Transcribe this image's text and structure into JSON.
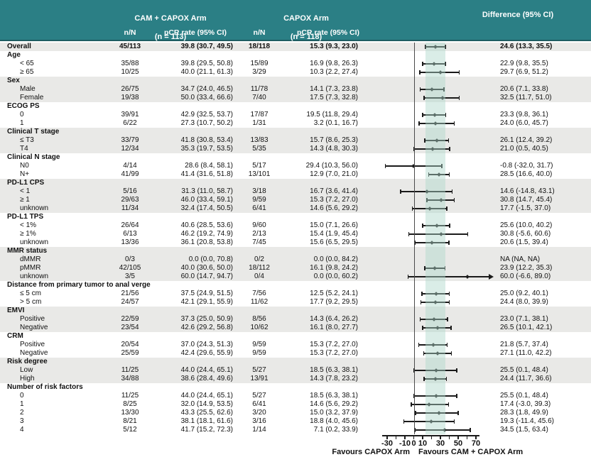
{
  "header": {
    "arm1_title": "CAM + CAPOX Arm",
    "arm1_sub": "(n = 113)",
    "arm2_title": "CAPOX Arm",
    "arm2_sub": "(n = 118)",
    "diff_title": "Difference (95% CI)",
    "col_nn_1": "n/N",
    "col_pcr_1": "pCR rate (95% CI)",
    "col_nn_2": "n/N",
    "col_pcr_2": "pCR rate (95% CI)"
  },
  "colors": {
    "header_teal": "#2b7f85",
    "row_shade": "#e9e9e7",
    "band_teal": "rgba(172,216,201,0.45)",
    "mark_black": "#1a1a1a"
  },
  "chart_data": {
    "type": "scatter",
    "subtype": "forest-plot",
    "xlabel_left": "Favours CAPOX Arm",
    "xlabel_right": "Favours CAM + CAPOX Arm",
    "axis": {
      "xlim_draw": [
        -42,
        90
      ],
      "axis_line": [
        -36,
        74
      ],
      "minor_ticks": [
        -30,
        -20,
        -10,
        0,
        10,
        20,
        30,
        40,
        50,
        60,
        70
      ],
      "labeled_ticks": [
        -30,
        -10,
        0,
        10,
        30,
        50,
        70
      ],
      "reference_line": 0
    },
    "shaded_band": [
      13.3,
      35.5
    ],
    "rows": [
      {
        "label": "Overall",
        "bold": true,
        "indent": 0,
        "cam_nN": "45/113",
        "cam_pcr": "39.8 (30.7, 49.5)",
        "capox_nN": "18/118",
        "capox_pcr": "15.3 (9.3, 23.0)",
        "diff": "24.6 (13.3, 35.5)",
        "est": 24.6,
        "lo": 13.3,
        "hi": 35.5
      },
      {
        "group": "Age"
      },
      {
        "label": "< 65",
        "cam_nN": "35/88",
        "cam_pcr": "39.8 (29.5, 50.8)",
        "capox_nN": "15/89",
        "capox_pcr": "16.9 (9.8, 26.3)",
        "diff": "22.9 (9.8, 35.5)",
        "est": 22.9,
        "lo": 9.8,
        "hi": 35.5
      },
      {
        "label": "≥ 65",
        "cam_nN": "10/25",
        "cam_pcr": "40.0 (21.1, 61.3)",
        "capox_nN": "3/29",
        "capox_pcr": "10.3 (2.2, 27.4)",
        "diff": "29.7 (6.9, 51.2)",
        "est": 29.7,
        "lo": 6.9,
        "hi": 51.2
      },
      {
        "group": "Sex"
      },
      {
        "label": "Male",
        "cam_nN": "26/75",
        "cam_pcr": "34.7 (24.0, 46.5)",
        "capox_nN": "11/78",
        "capox_pcr": "14.1 (7.3, 23.8)",
        "diff": "20.6 (7.1, 33.8)",
        "est": 20.6,
        "lo": 7.1,
        "hi": 33.8
      },
      {
        "label": "Female",
        "cam_nN": "19/38",
        "cam_pcr": "50.0 (33.4, 66.6)",
        "capox_nN": "7/40",
        "capox_pcr": "17.5 (7.3, 32.8)",
        "diff": "32.5 (11.7, 51.0)",
        "est": 32.5,
        "lo": 11.7,
        "hi": 51.0
      },
      {
        "group": "ECOG PS"
      },
      {
        "label": "0",
        "cam_nN": "39/91",
        "cam_pcr": "42.9 (32.5, 53.7)",
        "capox_nN": "17/87",
        "capox_pcr": "19.5 (11.8, 29.4)",
        "diff": "23.3 (9.8, 36.1)",
        "est": 23.3,
        "lo": 9.8,
        "hi": 36.1
      },
      {
        "label": "1",
        "cam_nN": "6/22",
        "cam_pcr": "27.3 (10.7, 50.2)",
        "capox_nN": "1/31",
        "capox_pcr": "3.2 (0.1, 16.7)",
        "diff": "24.0 (6.0, 45.7)",
        "est": 24.0,
        "lo": 6.0,
        "hi": 45.7
      },
      {
        "group": "Clinical T stage"
      },
      {
        "label": "≤ T3",
        "cam_nN": "33/79",
        "cam_pcr": "41.8 (30.8, 53.4)",
        "capox_nN": "13/83",
        "capox_pcr": "15.7 (8.6, 25.3)",
        "diff": "26.1 (12.4, 39.2)",
        "est": 26.1,
        "lo": 12.4,
        "hi": 39.2
      },
      {
        "label": "T4",
        "cam_nN": "12/34",
        "cam_pcr": "35.3 (19.7, 53.5)",
        "capox_nN": "5/35",
        "capox_pcr": "14.3 (4.8, 30.3)",
        "diff": "21.0 (0.5, 40.5)",
        "est": 21.0,
        "lo": 0.5,
        "hi": 40.5
      },
      {
        "group": "Clinical N stage"
      },
      {
        "label": "N0",
        "cam_nN": "4/14",
        "cam_pcr": "28.6 (8.4, 58.1)",
        "capox_nN": "5/17",
        "capox_pcr": "29.4 (10.3, 56.0)",
        "diff": "-0.8 (-32.0, 31.7)",
        "est": -0.8,
        "lo": -32.0,
        "hi": 31.7
      },
      {
        "label": "N+",
        "cam_nN": "41/99",
        "cam_pcr": "41.4 (31.6, 51.8)",
        "capox_nN": "13/101",
        "capox_pcr": "12.9 (7.0, 21.0)",
        "diff": "28.5 (16.6, 40.0)",
        "est": 28.5,
        "lo": 16.6,
        "hi": 40.0
      },
      {
        "group": "PD-L1 CPS"
      },
      {
        "label": "< 1",
        "cam_nN": "5/16",
        "cam_pcr": "31.3 (11.0, 58.7)",
        "capox_nN": "3/18",
        "capox_pcr": "16.7 (3.6, 41.4)",
        "diff": "14.6 (-14.8, 43.1)",
        "est": 14.6,
        "lo": -14.8,
        "hi": 43.1
      },
      {
        "label": "≥ 1",
        "cam_nN": "29/63",
        "cam_pcr": "46.0 (33.4, 59.1)",
        "capox_nN": "9/59",
        "capox_pcr": "15.3 (7.2, 27.0)",
        "diff": "30.8 (14.7, 45.4)",
        "est": 30.8,
        "lo": 14.7,
        "hi": 45.4
      },
      {
        "label": "unknown",
        "cam_nN": "11/34",
        "cam_pcr": "32.4 (17.4, 50.5)",
        "capox_nN": "6/41",
        "capox_pcr": "14.6 (5.6, 29.2)",
        "diff": "17.7 (-1.5, 37.0)",
        "est": 17.7,
        "lo": -1.5,
        "hi": 37.0
      },
      {
        "group": "PD-L1 TPS"
      },
      {
        "label": "< 1%",
        "cam_nN": "26/64",
        "cam_pcr": "40.6 (28.5, 53.6)",
        "capox_nN": "9/60",
        "capox_pcr": "15.0 (7.1, 26.6)",
        "diff": "25.6 (10.0, 40.2)",
        "est": 25.6,
        "lo": 10.0,
        "hi": 40.2
      },
      {
        "label": "≥ 1%",
        "cam_nN": "6/13",
        "cam_pcr": "46.2 (19.2, 74.9)",
        "capox_nN": "2/13",
        "capox_pcr": "15.4 (1.9, 45.4)",
        "diff": "30.8 (-5.6, 60.6)",
        "est": 30.8,
        "lo": -5.6,
        "hi": 60.6
      },
      {
        "label": "unknown",
        "cam_nN": "13/36",
        "cam_pcr": "36.1 (20.8, 53.8)",
        "capox_nN": "7/45",
        "capox_pcr": "15.6 (6.5, 29.5)",
        "diff": "20.6 (1.5, 39.4)",
        "est": 20.6,
        "lo": 1.5,
        "hi": 39.4
      },
      {
        "group": "MMR status"
      },
      {
        "label": "dMMR",
        "cam_nN": "0/3",
        "cam_pcr": "0.0 (0.0, 70.8)",
        "capox_nN": "0/2",
        "capox_pcr": "0.0 (0.0, 84.2)",
        "diff": "NA (NA, NA)",
        "est": null,
        "lo": null,
        "hi": null
      },
      {
        "label": "pMMR",
        "cam_nN": "42/105",
        "cam_pcr": "40.0 (30.6, 50.0)",
        "capox_nN": "18/112",
        "capox_pcr": "16.1 (9.8, 24.2)",
        "diff": "23.9 (12.2, 35.3)",
        "est": 23.9,
        "lo": 12.2,
        "hi": 35.3
      },
      {
        "label": "unknown",
        "cam_nN": "3/5",
        "cam_pcr": "60.0 (14.7, 94.7)",
        "capox_nN": "0/4",
        "capox_pcr": "0.0 (0.0, 60.2)",
        "diff": "60.0 (-6.6, 89.0)",
        "est": 60.0,
        "lo": -6.6,
        "hi": 89.0
      },
      {
        "group": "Distance from primary tumor to anal verge"
      },
      {
        "label": "≤ 5 cm",
        "cam_nN": "21/56",
        "cam_pcr": "37.5 (24.9, 51.5)",
        "capox_nN": "7/56",
        "capox_pcr": "12.5 (5.2, 24.1)",
        "diff": "25.0 (9.2, 40.1)",
        "est": 25.0,
        "lo": 9.2,
        "hi": 40.1
      },
      {
        "label": "> 5 cm",
        "cam_nN": "24/57",
        "cam_pcr": "42.1 (29.1, 55.9)",
        "capox_nN": "11/62",
        "capox_pcr": "17.7 (9.2, 29.5)",
        "diff": "24.4 (8.0, 39.9)",
        "est": 24.4,
        "lo": 8.0,
        "hi": 39.9
      },
      {
        "group": "EMVI"
      },
      {
        "label": "Positive",
        "cam_nN": "22/59",
        "cam_pcr": "37.3 (25.0, 50.9)",
        "capox_nN": "8/56",
        "capox_pcr": "14.3 (6.4, 26.2)",
        "diff": "23.0 (7.1, 38.1)",
        "est": 23.0,
        "lo": 7.1,
        "hi": 38.1
      },
      {
        "label": "Negative",
        "cam_nN": "23/54",
        "cam_pcr": "42.6 (29.2, 56.8)",
        "capox_nN": "10/62",
        "capox_pcr": "16.1 (8.0, 27.7)",
        "diff": "26.5 (10.1, 42.1)",
        "est": 26.5,
        "lo": 10.1,
        "hi": 42.1
      },
      {
        "group": "CRM"
      },
      {
        "label": "Positive",
        "cam_nN": "20/54",
        "cam_pcr": "37.0 (24.3, 51.3)",
        "capox_nN": "9/59",
        "capox_pcr": "15.3 (7.2, 27.0)",
        "diff": "21.8 (5.7, 37.4)",
        "est": 21.8,
        "lo": 5.7,
        "hi": 37.4
      },
      {
        "label": "Negative",
        "cam_nN": "25/59",
        "cam_pcr": "42.4 (29.6, 55.9)",
        "capox_nN": "9/59",
        "capox_pcr": "15.3 (7.2, 27.0)",
        "diff": "27.1 (11.0, 42.2)",
        "est": 27.1,
        "lo": 11.0,
        "hi": 42.2
      },
      {
        "group": "Risk degree"
      },
      {
        "label": "Low",
        "cam_nN": "11/25",
        "cam_pcr": "44.0 (24.4, 65.1)",
        "capox_nN": "5/27",
        "capox_pcr": "18.5 (6.3, 38.1)",
        "diff": "25.5 (0.1, 48.4)",
        "est": 25.5,
        "lo": 0.1,
        "hi": 48.4
      },
      {
        "label": "High",
        "cam_nN": "34/88",
        "cam_pcr": "38.6 (28.4, 49.6)",
        "capox_nN": "13/91",
        "capox_pcr": "14.3 (7.8, 23.2)",
        "diff": "24.4 (11.7, 36.6)",
        "est": 24.4,
        "lo": 11.7,
        "hi": 36.6
      },
      {
        "group": "Number of risk factors"
      },
      {
        "label": "0",
        "cam_nN": "11/25",
        "cam_pcr": "44.0 (24.4, 65.1)",
        "capox_nN": "5/27",
        "capox_pcr": "18.5 (6.3, 38.1)",
        "diff": "25.5 (0.1, 48.4)",
        "est": 25.5,
        "lo": 0.1,
        "hi": 48.4
      },
      {
        "label": "1",
        "cam_nN": "8/25",
        "cam_pcr": "32.0 (14.9, 53.5)",
        "capox_nN": "6/41",
        "capox_pcr": "14.6 (5.6, 29.2)",
        "diff": "17.4 (-3.0, 39.3)",
        "est": 17.4,
        "lo": -3.0,
        "hi": 39.3
      },
      {
        "label": "2",
        "cam_nN": "13/30",
        "cam_pcr": "43.3 (25.5, 62.6)",
        "capox_nN": "3/20",
        "capox_pcr": "15.0 (3.2, 37.9)",
        "diff": "28.3 (1.8, 49.9)",
        "est": 28.3,
        "lo": 1.8,
        "hi": 49.9
      },
      {
        "label": "3",
        "cam_nN": "8/21",
        "cam_pcr": "38.1 (18.1, 61.6)",
        "capox_nN": "3/16",
        "capox_pcr": "18.8 (4.0, 45.6)",
        "diff": "19.3 (-11.4, 45.6)",
        "est": 19.3,
        "lo": -11.4,
        "hi": 45.6
      },
      {
        "label": "4",
        "cam_nN": "5/12",
        "cam_pcr": "41.7 (15.2, 72.3)",
        "capox_nN": "1/14",
        "capox_pcr": "7.1 (0.2, 33.9)",
        "diff": "34.5 (1.5, 63.4)",
        "est": 34.5,
        "lo": 1.5,
        "hi": 63.4
      }
    ]
  }
}
